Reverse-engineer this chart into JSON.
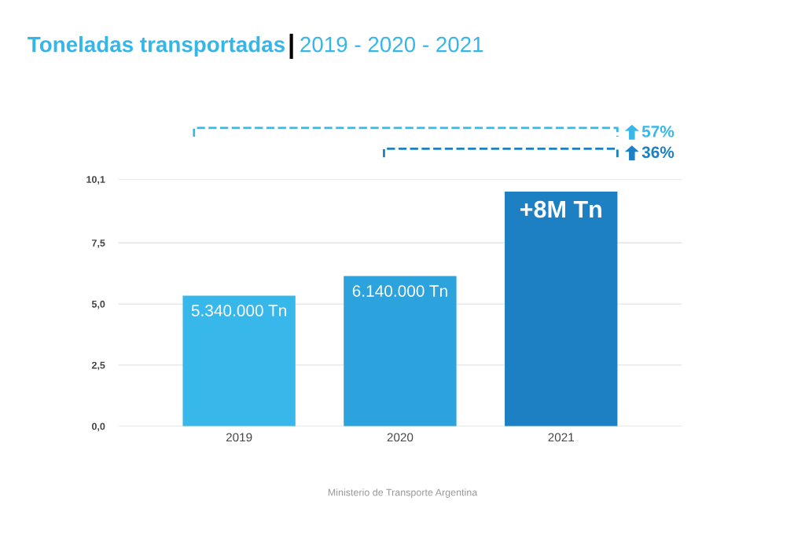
{
  "chart_data": {
    "type": "bar",
    "title": "Toneladas transportadas",
    "subtitle": "2019 - 2020 - 2021",
    "categories": [
      "2019",
      "2020",
      "2021"
    ],
    "values": [
      5.34,
      6.14,
      9.6
    ],
    "colors": [
      "#38b8ea",
      "#2ca3dc",
      "#1c80c3"
    ],
    "ylim": [
      0,
      10.1
    ],
    "yticks": [
      {
        "value": 0,
        "label": "0,0"
      },
      {
        "value": 2.5,
        "label": "2,5"
      },
      {
        "value": 5,
        "label": "5,0"
      },
      {
        "value": 7.5,
        "label": "7,5"
      },
      {
        "value": 10.1,
        "label": "10,1"
      }
    ],
    "grid": "y",
    "annotations": [
      {
        "text": "5.340.000 Tn",
        "x": "2019",
        "y": 5.34
      },
      {
        "text": "6.140.000 Tn",
        "x": "2020",
        "y": 6.14
      },
      {
        "text": "+8M Tn",
        "x": "2021",
        "y": 9.6
      },
      "57%",
      "36%",
      "Ministerio de Transporte Argentina"
    ]
  }
}
